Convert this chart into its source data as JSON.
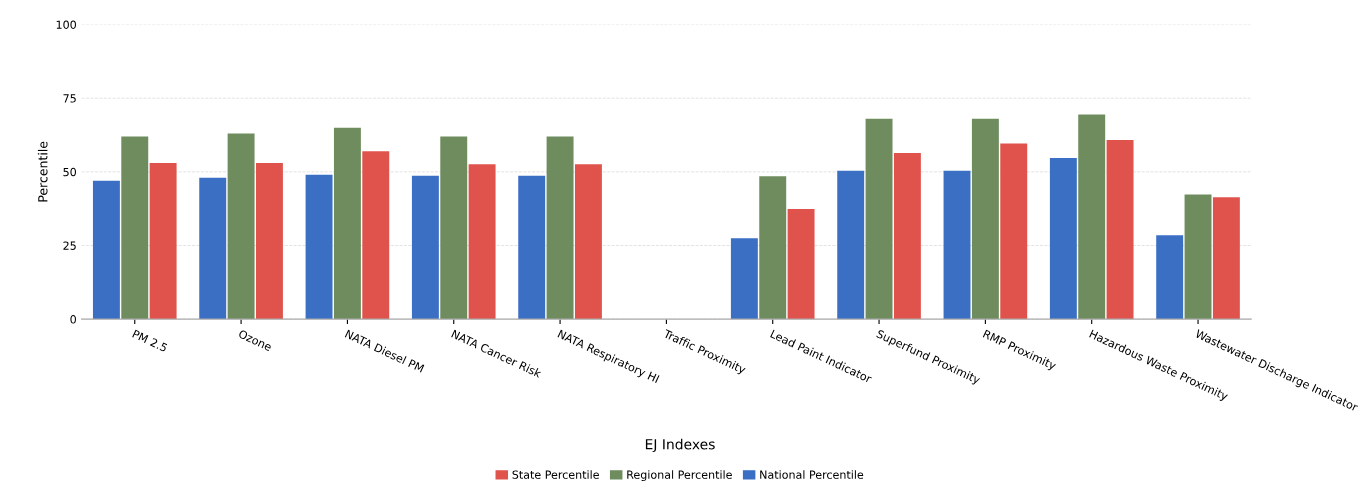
{
  "chart_data": {
    "type": "bar",
    "ylabel": "Percentile",
    "xlabel": "EJ Indexes",
    "categories": [
      "PM 2.5",
      "Ozone",
      "NATA Diesel PM",
      "NATA Cancer Risk",
      "NATA Respiratory HI",
      "Traffic Proximity",
      "Lead Paint Indicator",
      "Superfund Proximity",
      "RMP Proximity",
      "Hazardous Waste Proximity",
      "Wastewater Discharge Indicator"
    ],
    "series": [
      {
        "name": "National Percentile",
        "color": "#3a6fc4",
        "values": [
          47,
          48,
          49,
          48.7,
          48.7,
          null,
          27.5,
          50.4,
          50.4,
          54.7,
          28.5
        ]
      },
      {
        "name": "Regional Percentile",
        "color": "#6f8c5e",
        "values": [
          62,
          63,
          65,
          62,
          62,
          null,
          48.5,
          68,
          68,
          69.5,
          42.3
        ]
      },
      {
        "name": "State Percentile",
        "color": "#e0534d",
        "values": [
          53,
          53,
          57,
          52.6,
          52.6,
          null,
          37.4,
          56.4,
          59.6,
          60.8,
          41.4
        ]
      }
    ],
    "ylim": [
      0,
      100
    ],
    "yticks": [
      0,
      25,
      50,
      75,
      100
    ],
    "grid": "y",
    "legend": "bottom"
  }
}
